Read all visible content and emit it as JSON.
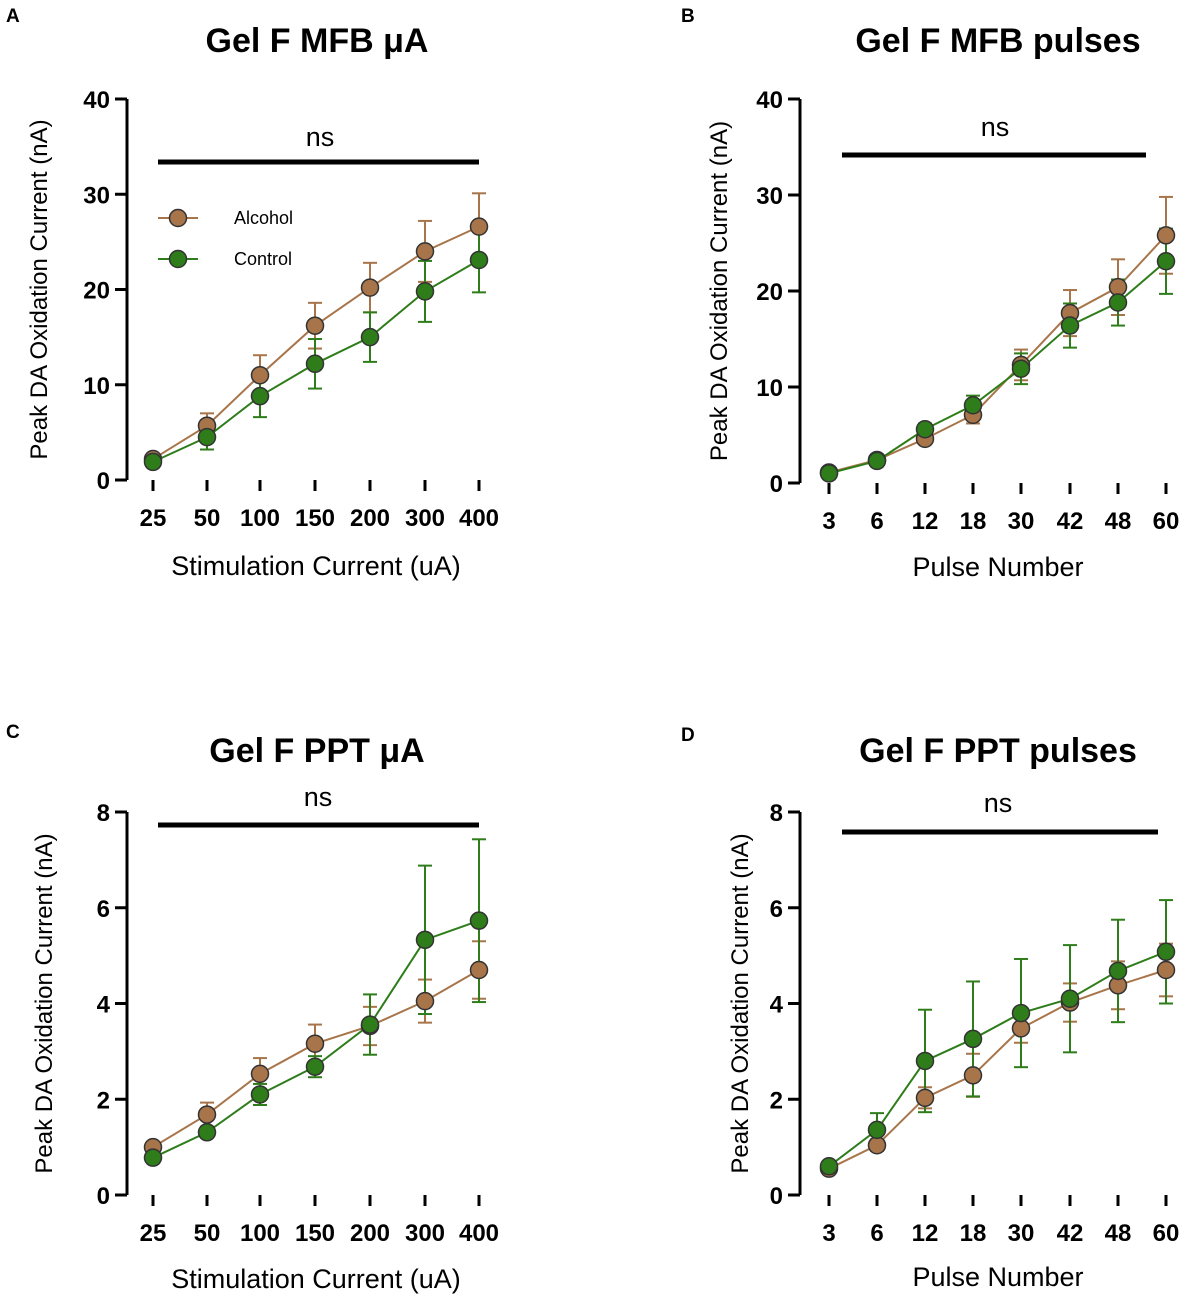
{
  "chart_data": [
    {
      "panel": "A",
      "type": "line",
      "title": "Gel F MFB μA",
      "xlabel": "Stimulation Current (uA)",
      "ylabel": "Peak DA Oxidation Current (nA)",
      "categories": [
        "25",
        "50",
        "100",
        "150",
        "200",
        "300",
        "400"
      ],
      "ylim": [
        0,
        40
      ],
      "yticks": [
        0,
        10,
        20,
        30,
        40
      ],
      "significance": "ns",
      "legend": {
        "position": "upper-left",
        "entries": [
          "Alcohol",
          "Control"
        ]
      },
      "series": [
        {
          "name": "Alcohol",
          "color": "#a8754a",
          "values": [
            2.2,
            5.7,
            11.0,
            16.2,
            20.2,
            24.0,
            26.6
          ],
          "errors": [
            0.3,
            1.3,
            2.1,
            2.4,
            2.6,
            3.2,
            3.5
          ]
        },
        {
          "name": "Control",
          "color": "#2e7d1a",
          "values": [
            1.9,
            4.5,
            8.8,
            12.2,
            15.0,
            19.8,
            23.1
          ],
          "errors": [
            0.2,
            1.3,
            2.2,
            2.6,
            2.6,
            3.2,
            3.4
          ]
        }
      ]
    },
    {
      "panel": "B",
      "type": "line",
      "title": "Gel F MFB pulses",
      "xlabel": "Pulse Number",
      "ylabel": "Peak DA Oxidation Current (nA)",
      "categories": [
        "3",
        "6",
        "12",
        "18",
        "30",
        "42",
        "48",
        "60"
      ],
      "ylim": [
        0,
        40
      ],
      "yticks": [
        0,
        10,
        20,
        30,
        40
      ],
      "significance": "ns",
      "series": [
        {
          "name": "Alcohol",
          "color": "#a8754a",
          "values": [
            1.1,
            2.4,
            4.6,
            7.1,
            12.3,
            17.7,
            20.4,
            25.8
          ],
          "errors": [
            0.2,
            0.3,
            0.5,
            0.9,
            1.6,
            2.4,
            2.9,
            4.0
          ]
        },
        {
          "name": "Control",
          "color": "#2e7d1a",
          "values": [
            1.0,
            2.3,
            5.6,
            8.1,
            11.9,
            16.4,
            18.8,
            23.1
          ],
          "errors": [
            0.2,
            0.3,
            0.6,
            1.0,
            1.6,
            2.3,
            2.4,
            3.4
          ]
        }
      ]
    },
    {
      "panel": "C",
      "type": "line",
      "title": "Gel F PPT μA",
      "xlabel": "Stimulation Current (uA)",
      "ylabel": "Peak DA Oxidation Current (nA)",
      "categories": [
        "25",
        "50",
        "100",
        "150",
        "200",
        "300",
        "400"
      ],
      "ylim": [
        0,
        8
      ],
      "yticks": [
        0,
        2,
        4,
        6,
        8
      ],
      "significance": "ns",
      "series": [
        {
          "name": "Alcohol",
          "color": "#a8754a",
          "values": [
            1.0,
            1.68,
            2.53,
            3.16,
            3.53,
            4.05,
            4.7
          ],
          "errors": [
            0.1,
            0.25,
            0.33,
            0.4,
            0.4,
            0.45,
            0.6
          ]
        },
        {
          "name": "Control",
          "color": "#2e7d1a",
          "values": [
            0.78,
            1.31,
            2.1,
            2.68,
            3.56,
            5.33,
            5.73
          ],
          "errors": [
            0.05,
            0.1,
            0.22,
            0.22,
            0.63,
            1.55,
            1.7
          ]
        }
      ]
    },
    {
      "panel": "D",
      "type": "line",
      "title": "Gel F PPT pulses",
      "xlabel": "Pulse Number",
      "ylabel": "Peak DA Oxidation Current (nA)",
      "categories": [
        "3",
        "6",
        "12",
        "18",
        "30",
        "42",
        "48",
        "60"
      ],
      "ylim": [
        0,
        8
      ],
      "yticks": [
        0,
        2,
        4,
        6,
        8
      ],
      "significance": "ns",
      "series": [
        {
          "name": "Alcohol",
          "color": "#a8754a",
          "values": [
            0.55,
            1.04,
            2.03,
            2.5,
            3.48,
            4.02,
            4.38,
            4.7
          ],
          "errors": [
            0.05,
            0.12,
            0.22,
            0.45,
            0.3,
            0.4,
            0.5,
            0.55
          ]
        },
        {
          "name": "Control",
          "color": "#2e7d1a",
          "values": [
            0.6,
            1.36,
            2.8,
            3.26,
            3.8,
            4.1,
            4.68,
            5.08
          ],
          "errors": [
            0.05,
            0.35,
            1.07,
            1.2,
            1.13,
            1.12,
            1.07,
            1.08
          ]
        }
      ]
    }
  ]
}
